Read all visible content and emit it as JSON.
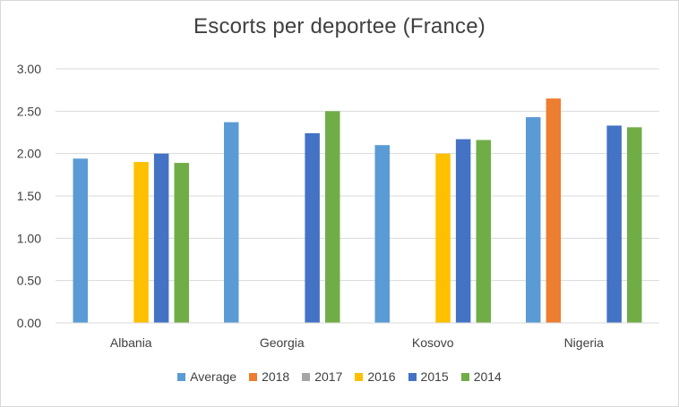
{
  "chart_data": {
    "type": "bar",
    "title": "Escorts per deportee (France)",
    "categories": [
      "Albania",
      "Georgia",
      "Kosovo",
      "Nigeria"
    ],
    "ylim": [
      0,
      3
    ],
    "yticks": [
      "0.00",
      "0.50",
      "1.00",
      "1.50",
      "2.00",
      "2.50",
      "3.00"
    ],
    "grid": true,
    "legend_position": "bottom",
    "series": [
      {
        "name": "Average",
        "color": "#5b9bd5",
        "values": [
          1.94,
          2.37,
          2.1,
          2.43
        ]
      },
      {
        "name": "2018",
        "color": "#ed7d31",
        "values": [
          null,
          null,
          null,
          2.65
        ]
      },
      {
        "name": "2017",
        "color": "#a5a5a5",
        "values": [
          null,
          null,
          null,
          null
        ]
      },
      {
        "name": "2016",
        "color": "#ffc000",
        "values": [
          1.9,
          null,
          2.0,
          null
        ]
      },
      {
        "name": "2015",
        "color": "#4472c4",
        "values": [
          2.0,
          2.24,
          2.17,
          2.33
        ]
      },
      {
        "name": "2014",
        "color": "#70ad47",
        "values": [
          1.89,
          2.5,
          2.16,
          2.31
        ]
      }
    ]
  }
}
